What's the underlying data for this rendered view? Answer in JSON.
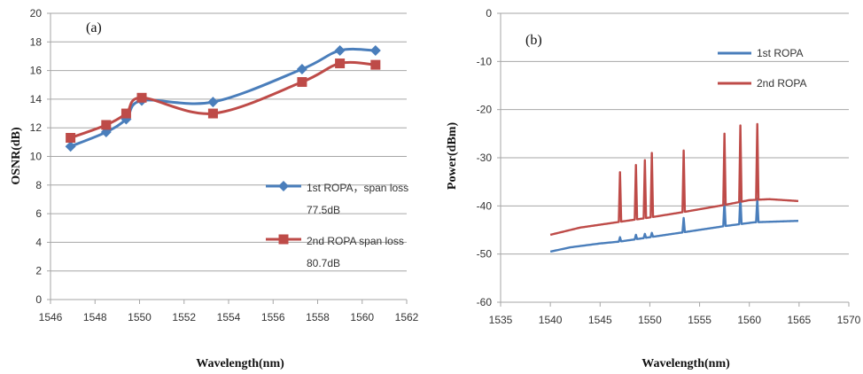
{
  "chart_data": [
    {
      "panel": "(a)",
      "type": "line",
      "xlabel": "Wavelength(nm)",
      "ylabel": "OSNR(dB)",
      "xlim": [
        1546,
        1562
      ],
      "ylim": [
        0,
        20
      ],
      "xticks": [
        "1546",
        "1548",
        "1550",
        "1552",
        "1554",
        "1556",
        "1558",
        "1560",
        "1562"
      ],
      "yticks": [
        "0",
        "2",
        "4",
        "6",
        "8",
        "10",
        "12",
        "14",
        "16",
        "18",
        "20"
      ],
      "grid": "horizontal",
      "legend_position": "bottom-right",
      "series": [
        {
          "name": "1st ROPA，span loss",
          "name_line2": "77.5dB",
          "color": "#4a7ebb",
          "marker": "diamond",
          "x": [
            1546.9,
            1548.5,
            1549.4,
            1550.1,
            1553.3,
            1557.3,
            1559.0,
            1560.6
          ],
          "y": [
            10.7,
            11.7,
            12.6,
            13.9,
            13.8,
            16.1,
            17.4,
            17.4
          ]
        },
        {
          "name": "2nd ROPA span loss",
          "name_line2": "80.7dB",
          "color": "#be4b48",
          "marker": "square",
          "x": [
            1546.9,
            1548.5,
            1549.4,
            1550.1,
            1553.3,
            1557.3,
            1559.0,
            1560.6
          ],
          "y": [
            11.3,
            12.2,
            13.0,
            14.1,
            13.0,
            15.2,
            16.5,
            16.4
          ]
        }
      ]
    },
    {
      "panel": "(b)",
      "type": "line",
      "xlabel": "Wavelength(nm)",
      "ylabel": "Power(dBm)",
      "xlim": [
        1535,
        1570
      ],
      "ylim": [
        -60,
        0
      ],
      "xticks": [
        "1535",
        "1540",
        "1545",
        "1550",
        "1555",
        "1560",
        "1565",
        "1570"
      ],
      "yticks": [
        "0",
        "-10",
        "-20",
        "-30",
        "-40",
        "-50",
        "-60"
      ],
      "grid": "horizontal",
      "legend_position": "top-right",
      "series": [
        {
          "name": "1st ROPA",
          "color": "#4a7ebb",
          "baseline": [
            [
              1540,
              -49.5
            ],
            [
              1542,
              -48.6
            ],
            [
              1545,
              -47.8
            ],
            [
              1547,
              -47.4
            ],
            [
              1550,
              -46.5
            ],
            [
              1553.3,
              -45.5
            ],
            [
              1557.5,
              -44.2
            ],
            [
              1560.5,
              -43.4
            ],
            [
              1565,
              -43.1
            ]
          ],
          "peaks": [
            [
              1547.0,
              -46.5
            ],
            [
              1548.6,
              -46.0
            ],
            [
              1549.5,
              -45.8
            ],
            [
              1550.2,
              -45.6
            ],
            [
              1553.4,
              -42.5
            ],
            [
              1557.5,
              -39.0
            ],
            [
              1559.1,
              -38.0
            ],
            [
              1560.8,
              -38.5
            ]
          ]
        },
        {
          "name": "2nd ROPA",
          "color": "#be4b48",
          "baseline": [
            [
              1540,
              -46.0
            ],
            [
              1543,
              -44.5
            ],
            [
              1546,
              -43.6
            ],
            [
              1550,
              -42.4
            ],
            [
              1553.3,
              -41.3
            ],
            [
              1557.5,
              -39.8
            ],
            [
              1560,
              -38.8
            ],
            [
              1562,
              -38.6
            ],
            [
              1565,
              -39.0
            ]
          ],
          "peaks": [
            [
              1547.0,
              -33.0
            ],
            [
              1548.6,
              -31.5
            ],
            [
              1549.5,
              -30.5
            ],
            [
              1550.2,
              -29.0
            ],
            [
              1553.4,
              -28.5
            ],
            [
              1557.5,
              -25.0
            ],
            [
              1559.1,
              -23.3
            ],
            [
              1560.8,
              -23.0
            ]
          ]
        }
      ]
    }
  ]
}
